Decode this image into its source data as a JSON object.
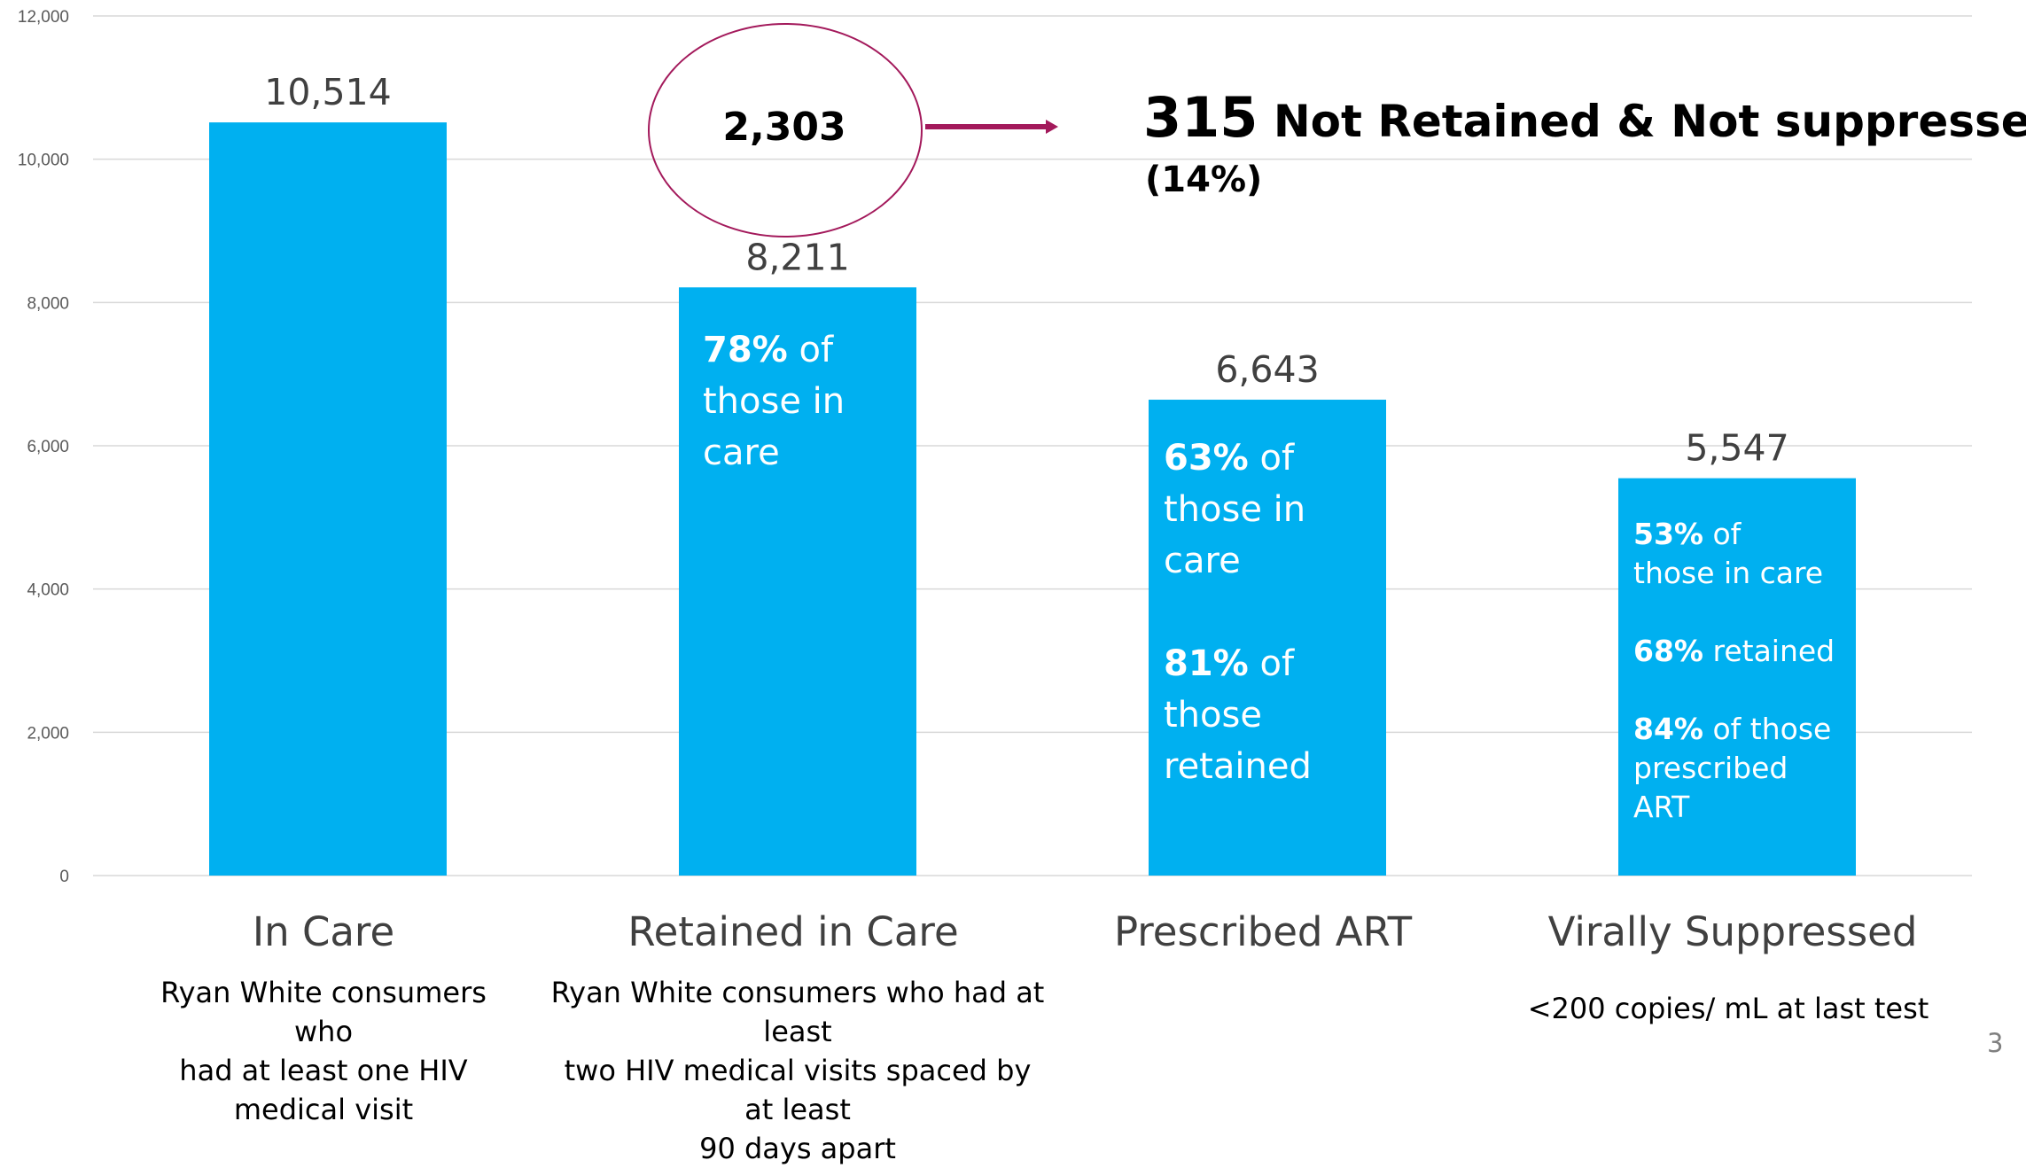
{
  "chart_data": {
    "type": "bar",
    "categories": [
      "In Care",
      "Retained in Care",
      "Prescribed ART",
      "Virally Suppressed"
    ],
    "values": [
      10514,
      8211,
      6643,
      5547
    ],
    "value_labels": [
      "10,514",
      "8,211",
      "6,643",
      "5,547"
    ],
    "ylim": [
      0,
      12000
    ],
    "yticks": [
      0,
      2000,
      4000,
      6000,
      8000,
      10000,
      12000
    ],
    "ytick_labels": [
      "0",
      "2,000",
      "4,000",
      "6,000",
      "8,000",
      "10,000",
      "12,000"
    ],
    "grid": true,
    "bar_color": "#00b0f0",
    "descriptions": [
      [
        "Ryan White consumers who",
        "had at least one HIV",
        "medical visit"
      ],
      [
        "Ryan White consumers who had at least",
        "two HIV medical visits spaced by at least",
        "90 days apart"
      ],
      [],
      [
        "<200 copies/ mL at last test"
      ]
    ],
    "in_bar_text": {
      "retained": {
        "pct": "78%",
        "of": " of",
        "l2": "those in",
        "l3": "care"
      },
      "art": {
        "pct1": "63%",
        "of1": " of",
        "l2": "those in",
        "l3": "care",
        "pct2": "81%",
        "of2": " of",
        "l5": "those",
        "l6": "retained"
      },
      "suppressed": {
        "pct1": "53%",
        "of1": " of",
        "l2": "those in care",
        "pct2": "68%",
        "t2": " retained",
        "pct3": "84%",
        "t3": " of those",
        "l5": "prescribed",
        "l6": "ART"
      }
    },
    "callout": {
      "circle_value": "2,303",
      "number": "315",
      "text": " Not Retained & Not suppressed",
      "percent": "(14%)",
      "accent_color": "#a3195b"
    }
  },
  "slide_number": "3"
}
